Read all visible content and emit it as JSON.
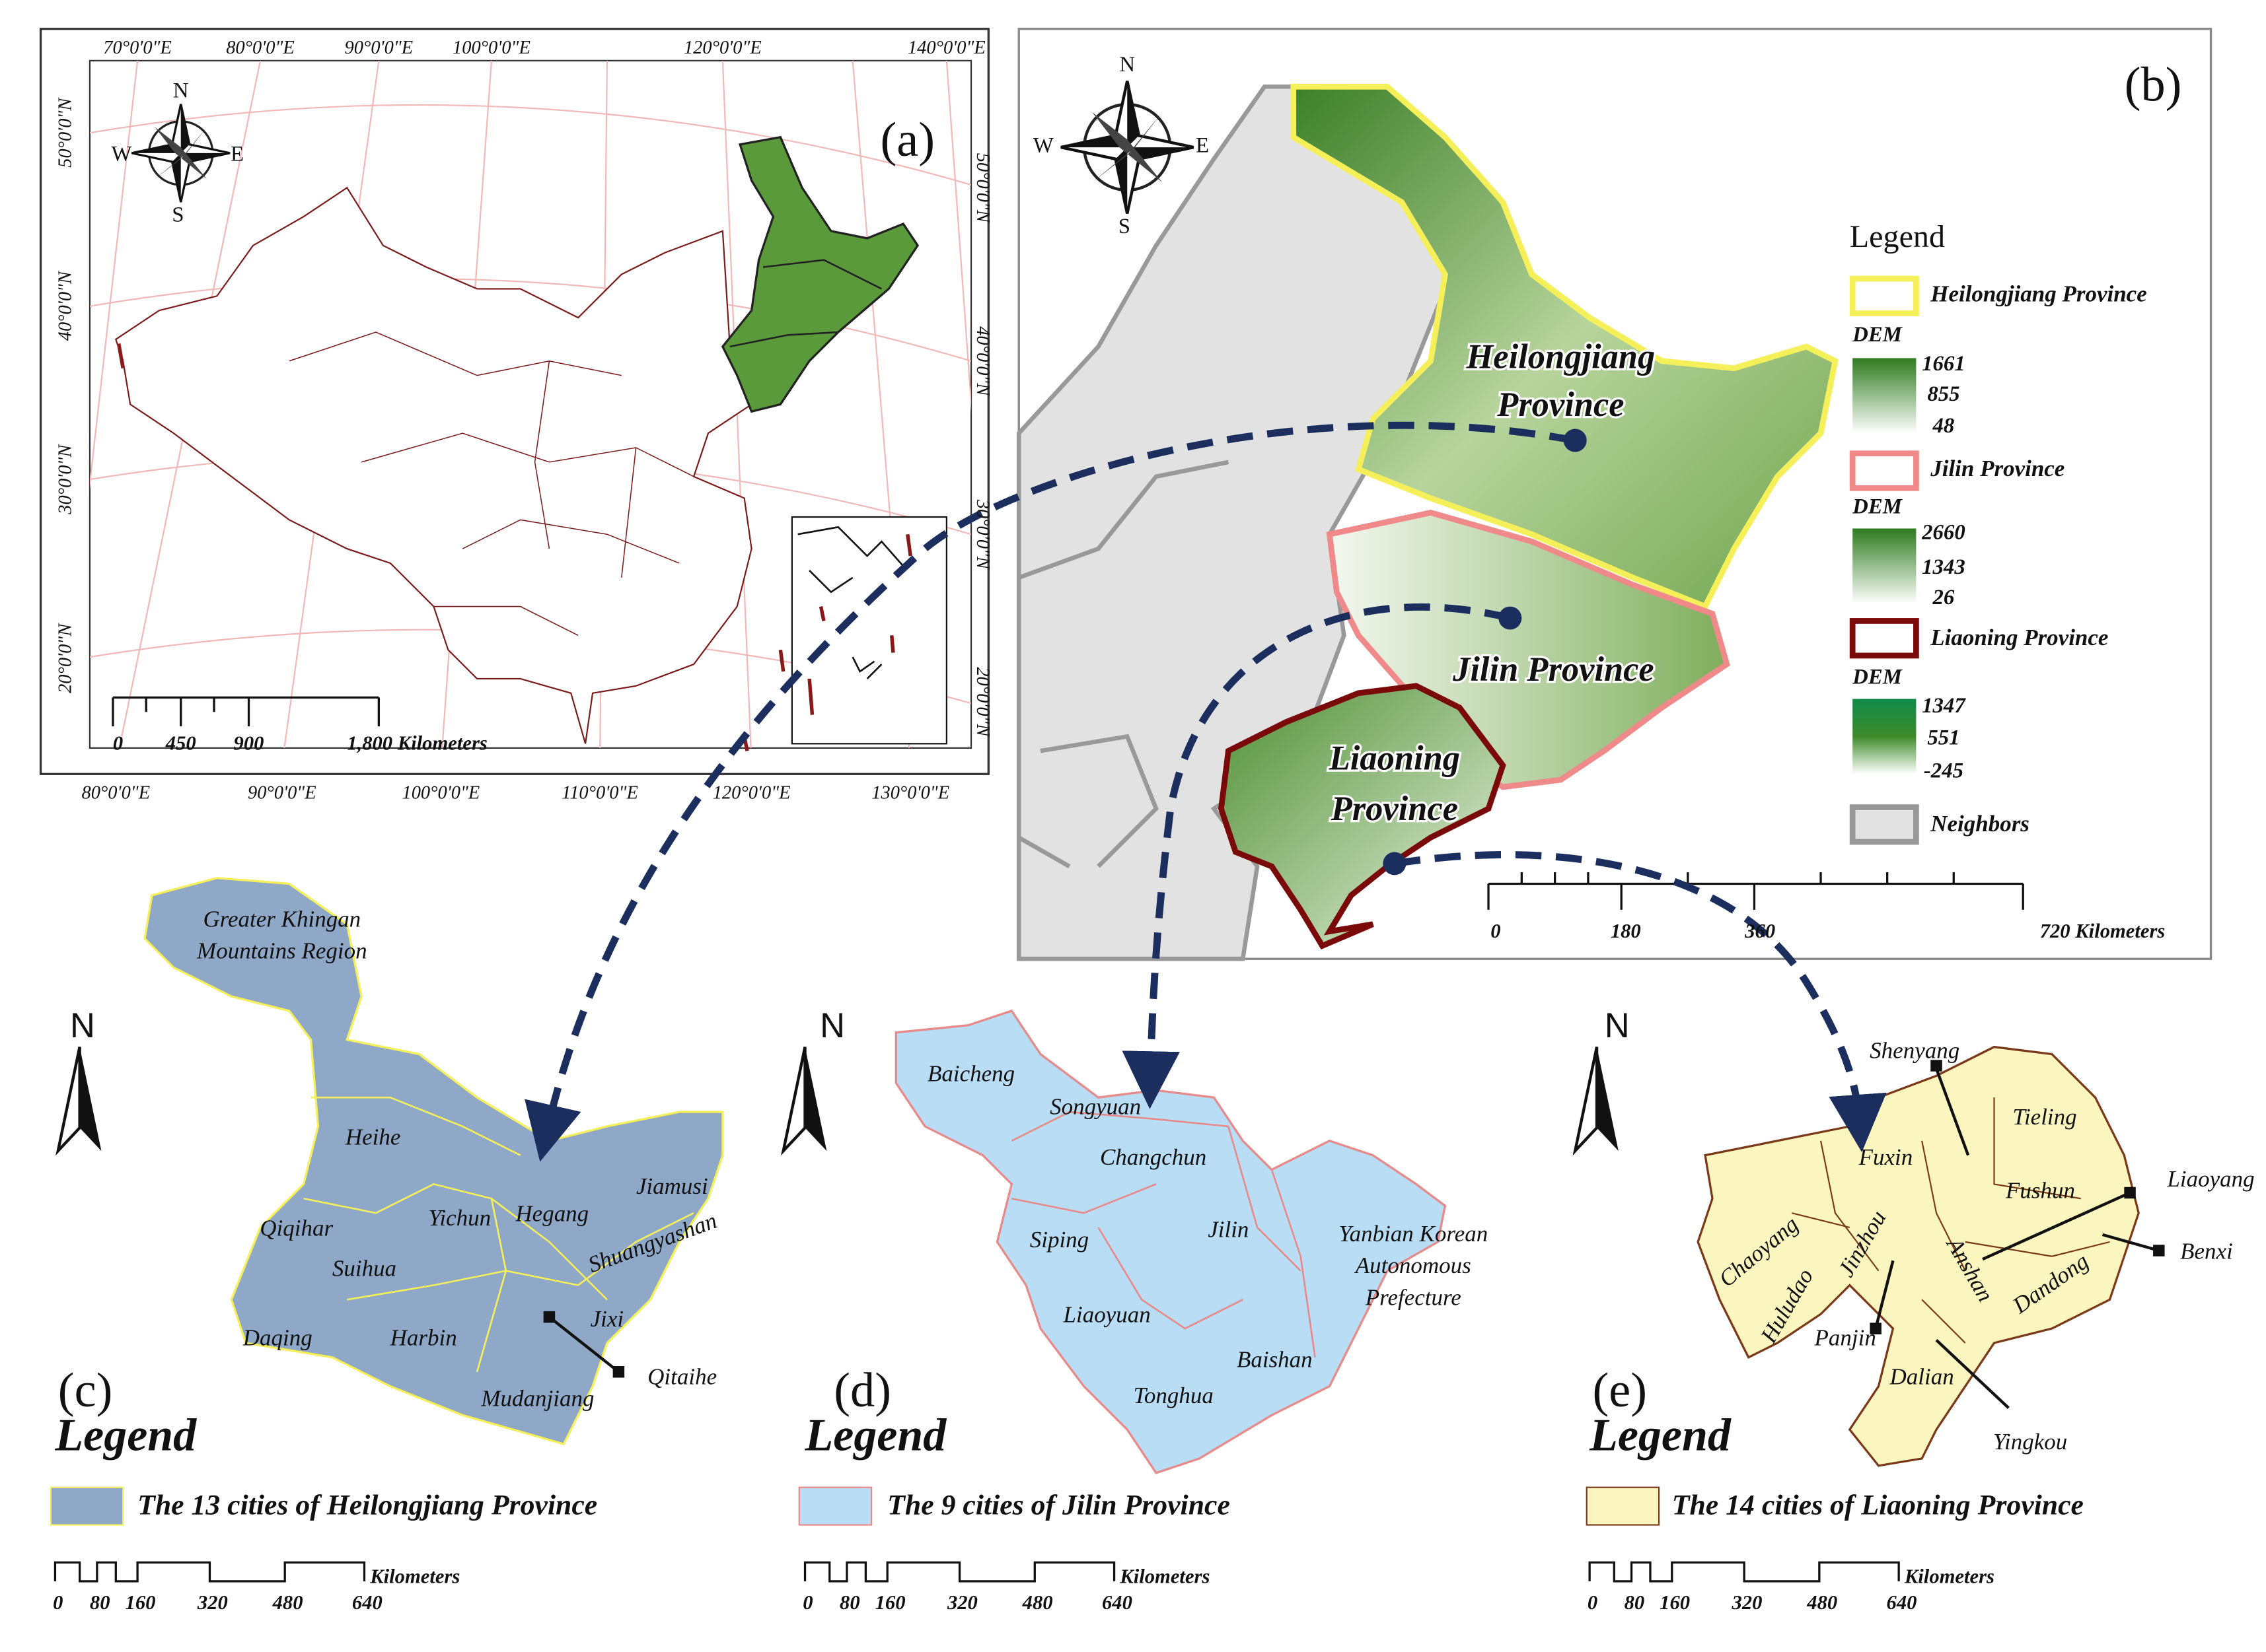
{
  "panel_a": {
    "label": "(a)",
    "top_longitudes": [
      "70°0'0\"E",
      "80°0'0\"E",
      "90°0'0\"E",
      "100°0'0\"E",
      "120°0'0\"E",
      "140°0'0\"E"
    ],
    "bottom_longitudes": [
      "80°0'0\"E",
      "90°0'0\"E",
      "100°0'0\"E",
      "110°0'0\"E",
      "120°0'0\"E",
      "130°0'0\"E"
    ],
    "left_latitudes": [
      "50°0'0\"N",
      "40°0'0\"N",
      "30°0'0\"N",
      "20°0'0\"N"
    ],
    "right_latitudes": [
      "50°0'0\"N",
      "40°0'0\"N",
      "30°0'0\"N",
      "20°0'0\"N"
    ],
    "compass": {
      "n": "N",
      "s": "S",
      "w": "W",
      "e": "E"
    },
    "scale_labels": [
      "0",
      "450",
      "900",
      "1,800 Kilometers"
    ]
  },
  "panel_b": {
    "label": "(b)",
    "compass": {
      "n": "N",
      "s": "S",
      "w": "W",
      "e": "E"
    },
    "map_labels": {
      "heilongjiang": [
        "Heilongjiang",
        "Province"
      ],
      "jilin": "Jilin Province",
      "liaoning": [
        "Liaoning",
        "Province"
      ]
    },
    "legend": {
      "title": "Legend",
      "items": [
        {
          "name": "Heilongjiang Province",
          "dem_title": "DEM",
          "dem_values": [
            "1661",
            "855",
            "48"
          ]
        },
        {
          "name": "Jilin Province",
          "dem_title": "DEM",
          "dem_values": [
            "2660",
            "1343",
            "26"
          ]
        },
        {
          "name": "Liaoning Province",
          "dem_title": "DEM",
          "dem_values": [
            "1347",
            "551",
            "-245"
          ]
        }
      ],
      "neighbors": "Neighbors"
    },
    "scale_labels": [
      "0",
      "180",
      "360",
      "720 Kilometers"
    ]
  },
  "panel_c": {
    "label": "(c)",
    "north": "N",
    "cities": [
      [
        "Greater Khingan",
        "Mountains Region"
      ],
      "Heihe",
      "Qiqihar",
      "Yichun",
      "Hegang",
      "Jiamusi",
      "Shuangyashan",
      "Suihua",
      "Daqing",
      "Harbin",
      "Jixi",
      "Mudanjiang",
      "Qitaihe"
    ],
    "legend_title": "Legend",
    "legend_item": "The 13 cities of Heilongjiang Province",
    "scale_labels": [
      "0",
      "80",
      "160",
      "320",
      "480",
      "640"
    ],
    "scale_unit": "Kilometers"
  },
  "panel_d": {
    "label": "(d)",
    "north": "N",
    "cities": [
      "Baicheng",
      "Songyuan",
      "Changchun",
      "Siping",
      "Jilin",
      [
        "Yanbian Korean",
        "Autonomous",
        "Prefecture"
      ],
      "Liaoyuan",
      "Baishan",
      "Tonghua"
    ],
    "legend_title": "Legend",
    "legend_item": "The 9 cities of Jilin Province",
    "scale_labels": [
      "0",
      "80",
      "160",
      "320",
      "480",
      "640"
    ],
    "scale_unit": "Kilometers"
  },
  "panel_e": {
    "label": "(e)",
    "north": "N",
    "cities": [
      "Shenyang",
      "Tieling",
      "Fuxin",
      "Fushun",
      "Liaoyang",
      "Benxi",
      "Chaoyang",
      "Jinzhou",
      "Huludao",
      "Panjin",
      "Anshan",
      "Dandong",
      "Dalian",
      "Yingkou"
    ],
    "legend_title": "Legend",
    "legend_item": "The 14 cities of Liaoning Province",
    "scale_labels": [
      "0",
      "80",
      "160",
      "320",
      "480",
      "640"
    ],
    "scale_unit": "Kilometers"
  }
}
